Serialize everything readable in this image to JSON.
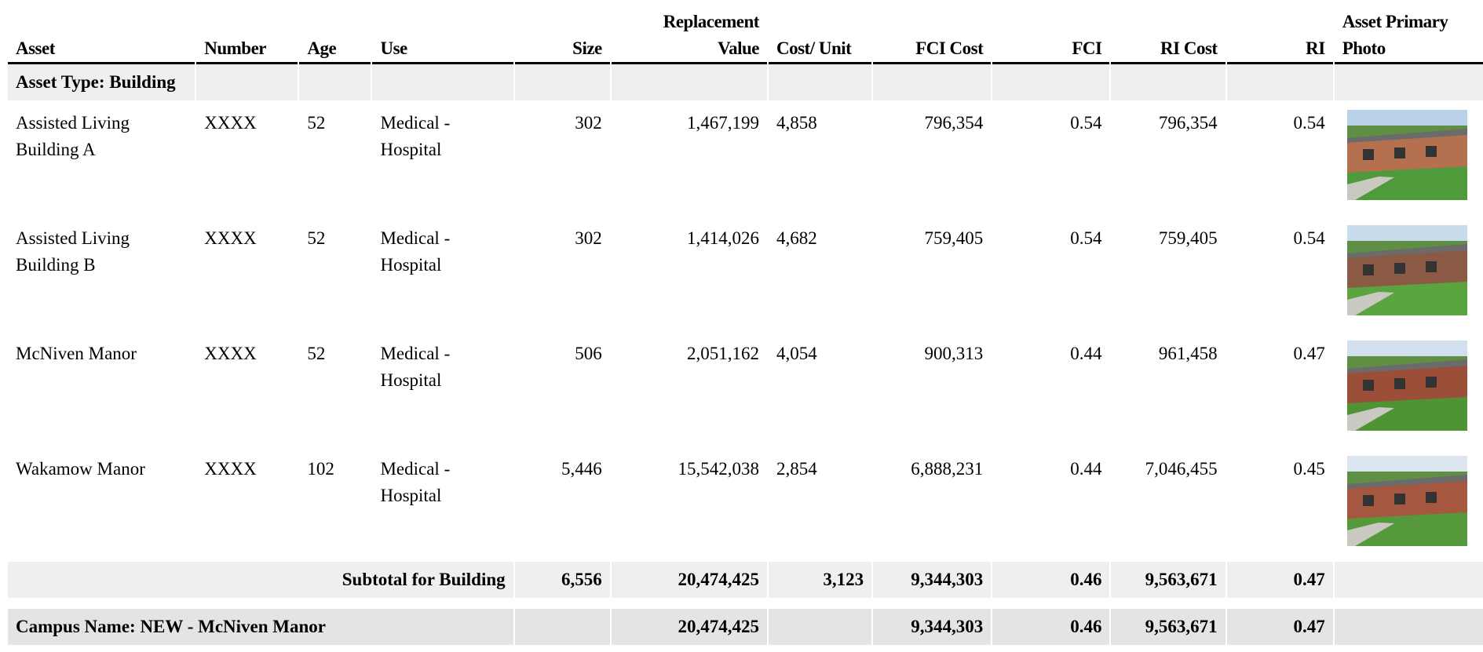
{
  "table": {
    "columns": [
      "Asset",
      "Number",
      "Age",
      "Use",
      "Size",
      "Replacement Value",
      "Cost/ Unit",
      "FCI Cost",
      "FCI",
      "RI Cost",
      "RI",
      "Asset Primary Photo"
    ],
    "group_label": "Asset Type: Building",
    "rows": [
      {
        "asset": "Assisted Living Building A",
        "number": "XXXX",
        "age": "52",
        "use": "Medical - Hospital",
        "size": "302",
        "replacement_value": "1,467,199",
        "cost_per_unit": "4,858",
        "fci_cost": "796,354",
        "fci": "0.54",
        "ri_cost": "796,354",
        "ri": "0.54"
      },
      {
        "asset": "Assisted Living Building B",
        "number": "XXXX",
        "age": "52",
        "use": "Medical - Hospital",
        "size": "302",
        "replacement_value": "1,414,026",
        "cost_per_unit": "4,682",
        "fci_cost": "759,405",
        "fci": "0.54",
        "ri_cost": "759,405",
        "ri": "0.54"
      },
      {
        "asset": "McNiven Manor",
        "number": "XXXX",
        "age": "52",
        "use": "Medical - Hospital",
        "size": "506",
        "replacement_value": "2,051,162",
        "cost_per_unit": "4,054",
        "fci_cost": "900,313",
        "fci": "0.44",
        "ri_cost": "961,458",
        "ri": "0.47"
      },
      {
        "asset": "Wakamow Manor",
        "number": "XXXX",
        "age": "102",
        "use": "Medical - Hospital",
        "size": "5,446",
        "replacement_value": "15,542,038",
        "cost_per_unit": "2,854",
        "fci_cost": "6,888,231",
        "fci": "0.44",
        "ri_cost": "7,046,455",
        "ri": "0.45"
      }
    ],
    "subtotal": {
      "label": "Subtotal for Building",
      "size": "6,556",
      "replacement_value": "20,474,425",
      "cost_per_unit": "3,123",
      "fci_cost": "9,344,303",
      "fci": "0.46",
      "ri_cost": "9,563,671",
      "ri": "0.47"
    },
    "campus": {
      "label": "Campus Name: NEW - McNiven Manor",
      "replacement_value": "20,474,425",
      "fci_cost": "9,344,303",
      "fci": "0.46",
      "ri_cost": "9,563,671",
      "ri": "0.47"
    }
  }
}
